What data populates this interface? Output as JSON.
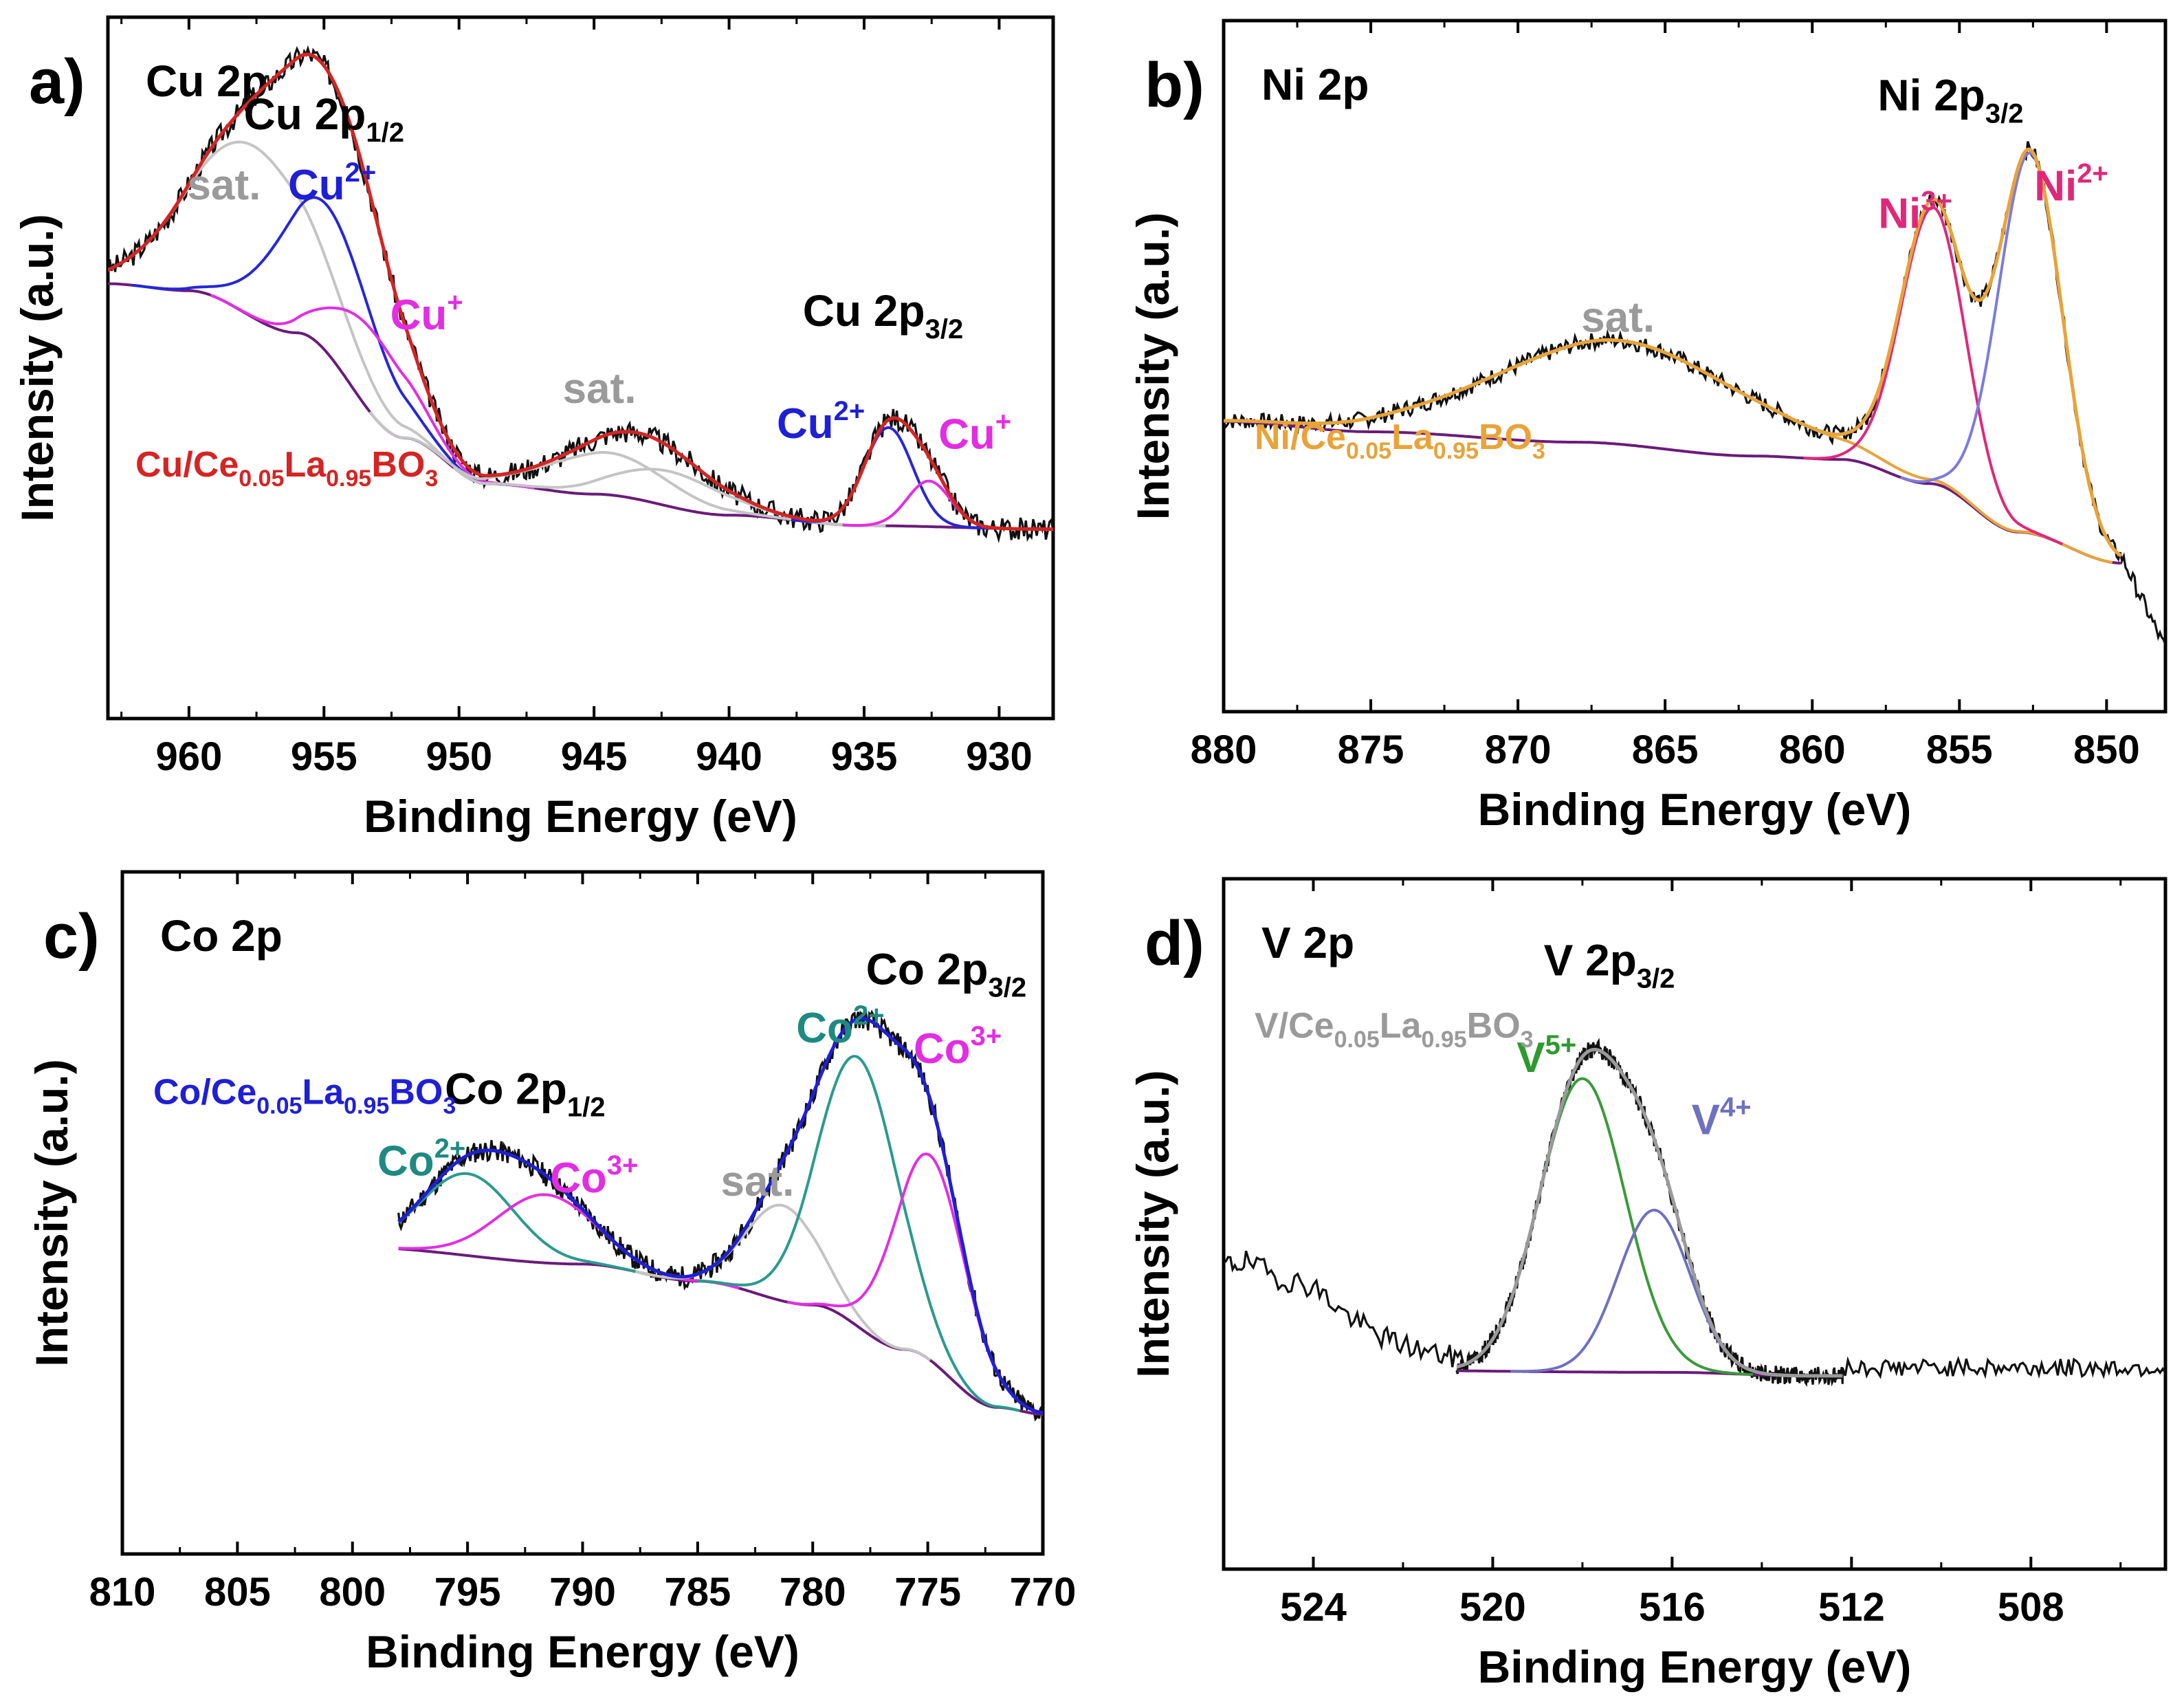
{
  "chart_data": [
    {
      "type": "line",
      "panel_label": "a)",
      "element": "Cu 2p",
      "sample": {
        "prefix": "Cu/Ce",
        "sub1": "0.05",
        "mid": "La",
        "sub2": "0.95",
        "suffix": "BO",
        "sub3": "3"
      },
      "xlabel": "Binding Energy (eV)",
      "ylabel": "Intensity (a.u.)",
      "xlim": [
        963,
        928
      ],
      "ylim": [
        0,
        1
      ],
      "xticks": [
        960,
        955,
        950,
        945,
        940,
        935,
        930
      ],
      "peak_groups": [
        {
          "main": "Cu 2p",
          "sub": "1/2",
          "x": 955,
          "y": 0.84
        },
        {
          "main": "Cu 2p",
          "sub": "3/2",
          "x": 934.3,
          "y": 0.56
        }
      ],
      "peak_labels": [
        {
          "text": "sat.",
          "sup": "",
          "x": 958.7,
          "y": 0.74,
          "color": "#9a9a9a"
        },
        {
          "text": "Cu",
          "sup": "2+",
          "x": 954.7,
          "y": 0.74,
          "color": "#1f1fd6"
        },
        {
          "text": "Cu",
          "sup": "+",
          "x": 951.2,
          "y": 0.555,
          "color": "#e22ee2"
        },
        {
          "text": "sat.",
          "sup": "",
          "x": 944.8,
          "y": 0.45,
          "color": "#9a9a9a"
        },
        {
          "text": "Cu",
          "sup": "2+",
          "x": 936.6,
          "y": 0.4,
          "color": "#1f1fd6"
        },
        {
          "text": "Cu",
          "sup": "+",
          "x": 930.9,
          "y": 0.385,
          "color": "#e22ee2"
        }
      ],
      "background_points": [
        [
          963,
          0.62
        ],
        [
          960,
          0.61
        ],
        [
          956,
          0.55
        ],
        [
          952,
          0.4
        ],
        [
          949,
          0.335
        ],
        [
          945,
          0.32
        ],
        [
          940,
          0.29
        ],
        [
          935,
          0.275
        ],
        [
          928,
          0.27
        ]
      ],
      "components": [
        {
          "name": "sat.",
          "color": "#c4c4c4",
          "center": 957.6,
          "height": 0.245,
          "width": 2.4
        },
        {
          "name": "Cu2+",
          "color": "#2626d9",
          "center": 954.9,
          "height": 0.21,
          "width": 1.8
        },
        {
          "name": "Cu+",
          "color": "#e22ee2",
          "center": 953.2,
          "height": 0.12,
          "width": 1.5
        },
        {
          "name": "sat.",
          "color": "#c4c4c4",
          "center": 944.5,
          "height": 0.06,
          "width": 2.2
        },
        {
          "name": "sat.",
          "color": "#c4c4c4",
          "center": 942.2,
          "height": 0.05,
          "width": 2.0
        },
        {
          "name": "Cu2+",
          "color": "#2626d9",
          "center": 934.1,
          "height": 0.14,
          "width": 0.9
        },
        {
          "name": "Cu+",
          "color": "#e22ee2",
          "center": 932.6,
          "height": 0.065,
          "width": 0.8
        }
      ],
      "colors": {
        "raw": "#111111",
        "envelope": "#d42424",
        "background": "#6a1b7a",
        "sample": "#d42424"
      },
      "noise": 0.016,
      "seed": 3
    },
    {
      "type": "line",
      "panel_label": "b)",
      "element": "Ni 2p",
      "sample": {
        "prefix": "Ni/Ce",
        "sub1": "0.05",
        "mid": "La",
        "sub2": "0.95",
        "suffix": "BO",
        "sub3": "3"
      },
      "xlabel": "Binding Energy (eV)",
      "ylabel": "Intensity (a.u.)",
      "xlim": [
        880,
        848
      ],
      "ylim": [
        0,
        1
      ],
      "xticks": [
        880,
        875,
        870,
        865,
        860,
        855,
        850
      ],
      "peak_groups": [
        {
          "main": "Ni 2p",
          "sub": "3/2",
          "x": 855.3,
          "y": 0.87
        }
      ],
      "peak_labels": [
        {
          "text": "sat.",
          "sup": "",
          "x": 866.6,
          "y": 0.55,
          "color": "#9a9a9a"
        },
        {
          "text": "Ni",
          "sup": "3+",
          "x": 856.5,
          "y": 0.7,
          "color": "#e0287a"
        },
        {
          "text": "Ni",
          "sup": "2+",
          "x": 851.2,
          "y": 0.74,
          "color": "#e0287a"
        }
      ],
      "background_points": [
        [
          880,
          0.42
        ],
        [
          875,
          0.405
        ],
        [
          868,
          0.39
        ],
        [
          862,
          0.37
        ],
        [
          859,
          0.365
        ],
        [
          856,
          0.33
        ],
        [
          853,
          0.26
        ],
        [
          849.5,
          0.215
        ]
      ],
      "components": [
        {
          "name": "sat.",
          "color": "#e8a33a",
          "center": 866.6,
          "height": 0.15,
          "width": 4.2
        },
        {
          "name": "Ni3+",
          "color": "#e0287a",
          "center": 855.9,
          "height": 0.4,
          "width": 1.1
        },
        {
          "name": "Ni2+",
          "color": "#7b7bdc",
          "center": 852.6,
          "height": 0.55,
          "width": 1.1
        }
      ],
      "colors": {
        "raw": "#111111",
        "envelope": "#e8a33a",
        "background": "#6a1b7a",
        "sample": "#e8a33a"
      },
      "noise": 0.012,
      "fit_range": [
        880,
        849.5
      ],
      "data_range": [
        880,
        848
      ],
      "seed": 7
    },
    {
      "type": "line",
      "panel_label": "c)",
      "element": "Co 2p",
      "sample": {
        "prefix": "Co/Ce",
        "sub1": "0.05",
        "mid": "La",
        "sub2": "0.95",
        "suffix": "BO",
        "sub3": "3"
      },
      "xlabel": "Binding Energy (eV)",
      "ylabel": "Intensity (a.u.)",
      "xlim": [
        810,
        770
      ],
      "ylim": [
        0,
        1
      ],
      "xticks": [
        810,
        805,
        800,
        795,
        790,
        785,
        780,
        775,
        770
      ],
      "peak_groups": [
        {
          "main": "Co 2p",
          "sub": "1/2",
          "x": 792.5,
          "y": 0.66
        },
        {
          "main": "Co 2p",
          "sub": "3/2",
          "x": 774.2,
          "y": 0.835
        }
      ],
      "peak_labels": [
        {
          "text": "Co",
          "sup": "2+",
          "x": 797,
          "y": 0.555,
          "color": "#1f8a82"
        },
        {
          "text": "Co",
          "sup": "3+",
          "x": 789.5,
          "y": 0.53,
          "color": "#e22ee2"
        },
        {
          "text": "sat.",
          "sup": "",
          "x": 782.4,
          "y": 0.525,
          "color": "#9a9a9a"
        },
        {
          "text": "Co",
          "sup": "2+",
          "x": 778.8,
          "y": 0.75,
          "color": "#1f8a82"
        },
        {
          "text": "Co",
          "sup": "3+",
          "x": 773.7,
          "y": 0.72,
          "color": "#e22ee2"
        }
      ],
      "background_points": [
        [
          810,
          0.465
        ],
        [
          800,
          0.45
        ],
        [
          790,
          0.425
        ],
        [
          785,
          0.4
        ],
        [
          780,
          0.365
        ],
        [
          776,
          0.3
        ],
        [
          772,
          0.215
        ],
        [
          770,
          0.205
        ]
      ],
      "components": [
        {
          "name": "Co2+",
          "color": "#2a9a8e",
          "center": 795.0,
          "height": 0.12,
          "width": 2.0
        },
        {
          "name": "Co3+",
          "color": "#e22ee2",
          "center": 791.6,
          "height": 0.1,
          "width": 2.1
        },
        {
          "name": "sat.",
          "color": "#c4c4c4",
          "center": 781.3,
          "height": 0.14,
          "width": 1.6
        },
        {
          "name": "Co2+",
          "color": "#2a9a8e",
          "center": 778.0,
          "height": 0.395,
          "width": 1.75
        },
        {
          "name": "Co3+",
          "color": "#e22ee2",
          "center": 774.9,
          "height": 0.3,
          "width": 1.55
        }
      ],
      "colors": {
        "raw": "#111111",
        "envelope": "#1f1fd6",
        "background": "#6a1b7a",
        "sample": "#1f1fd6"
      },
      "noise": 0.016,
      "fit_range": [
        798,
        770
      ],
      "seed": 11
    },
    {
      "type": "line",
      "panel_label": "d)",
      "element": "V 2p",
      "sample": {
        "prefix": "V/Ce",
        "sub1": "0.05",
        "mid": "La",
        "sub2": "0.95",
        "suffix": "BO",
        "sub3": "3"
      },
      "xlabel": "Binding Energy (eV)",
      "ylabel": "Intensity (a.u.)",
      "xlim": [
        526,
        505
      ],
      "ylim": [
        0,
        1
      ],
      "xticks": [
        524,
        520,
        516,
        512,
        508
      ],
      "peak_groups": [
        {
          "main": "V 2p",
          "sub": "3/2",
          "x": 517.4,
          "y": 0.86
        }
      ],
      "peak_labels": [
        {
          "text": "V",
          "sup": "5+",
          "x": 518.8,
          "y": 0.72,
          "color": "#2c9a2c"
        },
        {
          "text": "V",
          "sup": "4+",
          "x": 514.9,
          "y": 0.63,
          "color": "#7070c0"
        }
      ],
      "background_points": [
        [
          526,
          0.29
        ],
        [
          516,
          0.285
        ],
        [
          513,
          0.28
        ],
        [
          505,
          0.28
        ]
      ],
      "components": [
        {
          "name": "V5+",
          "color": "#3a9a3a",
          "center": 518.0,
          "height": 0.425,
          "width": 0.95
        },
        {
          "name": "V4+",
          "color": "#7070c0",
          "center": 516.4,
          "height": 0.235,
          "width": 0.8
        }
      ],
      "colors": {
        "raw": "#111111",
        "envelope": "#9a9a9a",
        "background": "#6a1b7a",
        "sample": "#9a9a9a"
      },
      "noise": 0.013,
      "fit_range": [
        520.8,
        512.2
      ],
      "extra_raw": [
        [
          526,
          0.44
        ],
        [
          525.5,
          0.445
        ],
        [
          524.7,
          0.42
        ],
        [
          524,
          0.41
        ],
        [
          523.3,
          0.37
        ],
        [
          522.6,
          0.34
        ],
        [
          522,
          0.325
        ],
        [
          521.2,
          0.31
        ],
        [
          520.6,
          0.305
        ]
      ],
      "seed": 19
    }
  ]
}
